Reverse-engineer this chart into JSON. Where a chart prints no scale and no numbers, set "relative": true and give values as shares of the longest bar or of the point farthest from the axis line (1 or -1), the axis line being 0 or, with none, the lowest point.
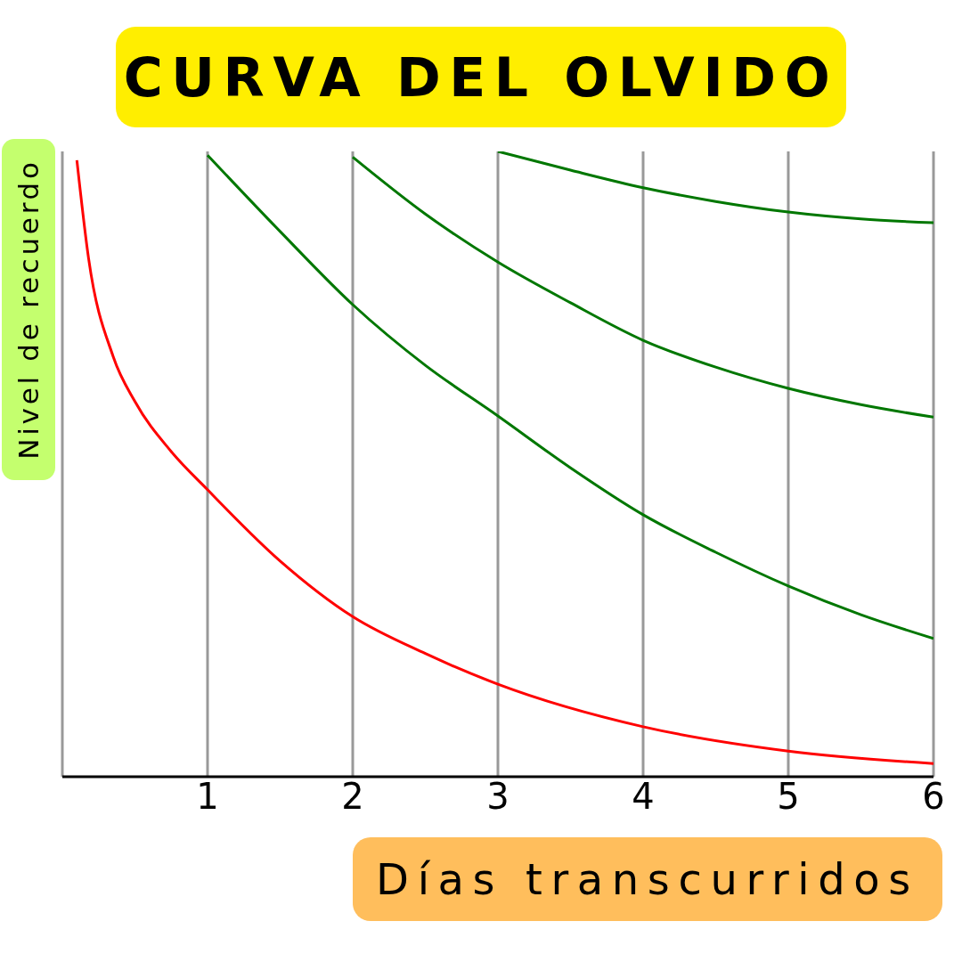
{
  "chart_data": {
    "type": "line",
    "title": "CURVA DEL OLVIDO",
    "xlabel": "Días transcurridos",
    "ylabel": "Nivel de recuerdo",
    "relative": true,
    "xlim": [
      0,
      6
    ],
    "xticks": [
      1,
      2,
      3,
      4,
      5,
      6
    ],
    "grid": "x",
    "legend": false,
    "marker": "none",
    "line_style": "solid",
    "series": [
      {
        "color": "#ff0000",
        "x": [
          0.1,
          0.18,
          0.35,
          0.5,
          0.75,
          1,
          1.5,
          2,
          2.5,
          3,
          4,
          5,
          6
        ],
        "values": [
          0.986,
          0.83,
          0.672,
          0.6,
          0.52,
          0.459,
          0.345,
          0.256,
          0.197,
          0.148,
          0.08,
          0.041,
          0.021
        ]
      },
      {
        "color": "#007700",
        "x": [
          1,
          1.5,
          2,
          2.5,
          3,
          3.5,
          4,
          4.5,
          5,
          5.5,
          6
        ],
        "values": [
          0.994,
          0.872,
          0.755,
          0.658,
          0.577,
          0.494,
          0.419,
          0.359,
          0.305,
          0.259,
          0.221
        ]
      },
      {
        "color": "#007700",
        "x": [
          2,
          2.5,
          3,
          3.5,
          4,
          4.5,
          5,
          5.5,
          6
        ],
        "values": [
          0.991,
          0.9,
          0.823,
          0.758,
          0.698,
          0.655,
          0.621,
          0.595,
          0.575
        ]
      },
      {
        "color": "#007700",
        "x": [
          3,
          3.5,
          4,
          4.5,
          5,
          5.5,
          6
        ],
        "values": [
          1,
          0.97,
          0.942,
          0.92,
          0.903,
          0.892,
          0.886
        ]
      }
    ]
  }
}
